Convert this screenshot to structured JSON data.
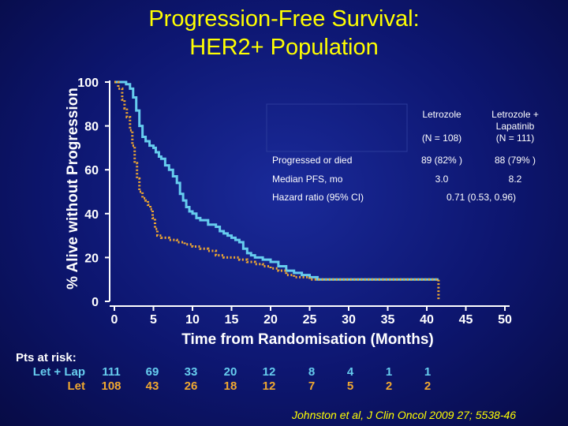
{
  "title_line1": "Progression-Free Survival:",
  "title_line2": "HER2+ Population",
  "citation": "Johnston et al,  J Clin Oncol 2009 27; 5538-46",
  "colors": {
    "let_lap": "#66ccee",
    "let": "#f0a830",
    "title": "#ffff00"
  },
  "table": {
    "col_letrozole": [
      "Letrozole",
      "",
      "(N = 108)"
    ],
    "col_letlap": [
      "Letrozole +",
      "Lapatinib",
      "(N = 111)"
    ],
    "rows": [
      {
        "label": "Progressed or died",
        "letrozole": "89 (82% )",
        "letlap": "88 (79% )"
      },
      {
        "label": "Median PFS, mo",
        "letrozole": "3.0",
        "letlap": "8.2"
      },
      {
        "label": "Hazard ratio (95% CI)",
        "combined": "0.71 (0.53, 0.96)"
      }
    ]
  },
  "risk": {
    "title": "Pts at risk:",
    "let_lap_label": "Let + Lap",
    "let_label": "Let",
    "let_lap": [
      "111",
      "69",
      "33",
      "20",
      "12",
      "8",
      "4",
      "1",
      "1"
    ],
    "let": [
      "108",
      "43",
      "26",
      "18",
      "12",
      "7",
      "5",
      "2",
      "2"
    ]
  },
  "chart_data": {
    "type": "line",
    "xlabel": "Time from Randomisation (Months)",
    "ylabel": "% Alive without Progression",
    "xlim": [
      0,
      50
    ],
    "ylim": [
      0,
      100
    ],
    "xticks": [
      "0",
      "5",
      "10",
      "15",
      "20",
      "25",
      "30",
      "35",
      "40",
      "45",
      "50"
    ],
    "yticks": [
      "0",
      "20",
      "40",
      "60",
      "80",
      "100"
    ],
    "series": [
      {
        "name": "Let + Lap",
        "style": "solid",
        "points": [
          [
            0,
            100
          ],
          [
            1,
            100
          ],
          [
            1.5,
            99
          ],
          [
            2,
            97
          ],
          [
            2.4,
            93
          ],
          [
            2.8,
            87
          ],
          [
            3.2,
            80
          ],
          [
            3.6,
            75
          ],
          [
            4,
            73
          ],
          [
            4.5,
            71
          ],
          [
            5,
            70
          ],
          [
            5.3,
            68
          ],
          [
            5.7,
            66
          ],
          [
            6,
            65
          ],
          [
            6.5,
            62
          ],
          [
            7,
            60
          ],
          [
            7.5,
            57
          ],
          [
            8,
            54
          ],
          [
            8.4,
            49
          ],
          [
            8.8,
            46
          ],
          [
            9.2,
            43
          ],
          [
            9.6,
            41
          ],
          [
            10,
            40
          ],
          [
            10.5,
            38
          ],
          [
            11,
            37
          ],
          [
            12,
            35
          ],
          [
            13,
            34
          ],
          [
            13.5,
            32
          ],
          [
            14,
            31
          ],
          [
            14.5,
            30
          ],
          [
            15,
            29
          ],
          [
            15.5,
            28
          ],
          [
            16,
            27
          ],
          [
            16.5,
            24
          ],
          [
            17,
            22
          ],
          [
            17.5,
            21
          ],
          [
            18,
            20
          ],
          [
            19,
            19
          ],
          [
            20,
            18
          ],
          [
            21,
            16
          ],
          [
            22,
            14
          ],
          [
            23,
            13
          ],
          [
            24,
            12
          ],
          [
            25,
            11
          ],
          [
            26,
            10
          ],
          [
            28,
            10
          ],
          [
            30,
            10
          ],
          [
            32,
            10
          ],
          [
            34,
            10
          ],
          [
            36,
            10
          ],
          [
            38,
            10
          ],
          [
            40,
            10
          ],
          [
            41.5,
            10
          ]
        ]
      },
      {
        "name": "Let",
        "style": "dotted",
        "points": [
          [
            0,
            100
          ],
          [
            0.5,
            97
          ],
          [
            1,
            92
          ],
          [
            1.3,
            88
          ],
          [
            1.6,
            84
          ],
          [
            2,
            78
          ],
          [
            2.3,
            71
          ],
          [
            2.6,
            63
          ],
          [
            2.9,
            56
          ],
          [
            3.2,
            50
          ],
          [
            3.6,
            47
          ],
          [
            4,
            46
          ],
          [
            4.3,
            44
          ],
          [
            4.6,
            42
          ],
          [
            4.9,
            38
          ],
          [
            5.2,
            33
          ],
          [
            5.5,
            30
          ],
          [
            6,
            29
          ],
          [
            7,
            28
          ],
          [
            8,
            27
          ],
          [
            9,
            26
          ],
          [
            10,
            25
          ],
          [
            11,
            24
          ],
          [
            12,
            23
          ],
          [
            13,
            21
          ],
          [
            14,
            20
          ],
          [
            15,
            20
          ],
          [
            16,
            19
          ],
          [
            17,
            18
          ],
          [
            18,
            17
          ],
          [
            19,
            16
          ],
          [
            20,
            15
          ],
          [
            21,
            14
          ],
          [
            22,
            12
          ],
          [
            23,
            11
          ],
          [
            24,
            11
          ],
          [
            25,
            10
          ],
          [
            26,
            10
          ],
          [
            28,
            10
          ],
          [
            30,
            10
          ],
          [
            32,
            10
          ],
          [
            35,
            10
          ],
          [
            38,
            10
          ],
          [
            40,
            10
          ],
          [
            41.5,
            10
          ],
          [
            41.5,
            1
          ]
        ]
      }
    ]
  }
}
